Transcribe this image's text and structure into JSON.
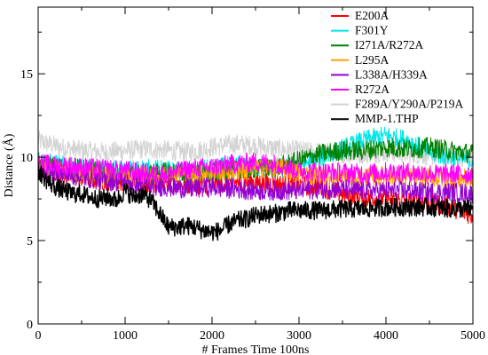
{
  "chart_data": {
    "type": "line",
    "title": "",
    "xlabel": "# Frames Time 100ns",
    "ylabel": "Distance (Å)",
    "xlim": [
      0,
      5000
    ],
    "ylim": [
      0,
      19
    ],
    "xticks": [
      0,
      1000,
      2000,
      3000,
      4000,
      5000
    ],
    "yticks": [
      0,
      5,
      10,
      15
    ],
    "grid": false,
    "legend_position": "top-right",
    "series": [
      {
        "name": "E200A",
        "color": "#ff0000",
        "x": [
          0,
          250,
          500,
          750,
          1000,
          1250,
          1500,
          1750,
          2000,
          2250,
          2500,
          2750,
          3000,
          3250,
          3500,
          3750,
          4000,
          4250,
          4500,
          4750,
          5000
        ],
        "y": [
          9.5,
          9.0,
          8.8,
          8.6,
          8.6,
          8.5,
          8.4,
          8.3,
          8.4,
          8.5,
          8.5,
          8.4,
          8.3,
          8.2,
          7.8,
          7.6,
          7.5,
          7.4,
          7.3,
          7.0,
          6.5
        ]
      },
      {
        "name": "F301Y",
        "color": "#00e5e5",
        "x": [
          0,
          250,
          500,
          750,
          1000,
          1250,
          1500,
          1750,
          2000,
          2250,
          2500,
          2750,
          3000,
          3250,
          3500,
          3750,
          4000,
          4250,
          4500,
          4750,
          5000
        ],
        "y": [
          9.8,
          9.5,
          9.3,
          9.2,
          9.2,
          9.3,
          9.2,
          9.1,
          9.3,
          9.5,
          9.4,
          9.3,
          9.5,
          10.0,
          10.5,
          11.0,
          11.3,
          11.0,
          10.3,
          10.0,
          9.8
        ]
      },
      {
        "name": "I271A/R272A",
        "color": "#008000",
        "x": [
          0,
          250,
          500,
          750,
          1000,
          1250,
          1500,
          1750,
          2000,
          2250,
          2500,
          2750,
          3000,
          3250,
          3500,
          3750,
          4000,
          4250,
          4500,
          4750,
          5000
        ],
        "y": [
          9.6,
          9.4,
          9.3,
          9.1,
          9.0,
          9.0,
          9.1,
          9.0,
          9.1,
          9.2,
          9.3,
          9.4,
          9.8,
          10.2,
          10.4,
          10.4,
          10.6,
          10.5,
          10.6,
          10.4,
          10.2
        ]
      },
      {
        "name": "L295A",
        "color": "#ffa500",
        "x": [
          0,
          250,
          500,
          750,
          1000,
          1250,
          1500,
          1750,
          2000,
          2250,
          2500,
          2750,
          3000,
          3250,
          3500,
          3750,
          4000,
          4250,
          4500,
          4750,
          5000
        ],
        "y": [
          9.4,
          9.2,
          9.0,
          8.9,
          8.8,
          8.8,
          9.0,
          9.0,
          9.1,
          9.2,
          9.3,
          9.4,
          9.0,
          8.9,
          8.8,
          8.8,
          8.9,
          8.8,
          8.8,
          8.7,
          8.7
        ]
      },
      {
        "name": "L338A/H339A",
        "color": "#9400d3",
        "x": [
          0,
          250,
          500,
          750,
          1000,
          1250,
          1500,
          1750,
          2000,
          2250,
          2500,
          2750,
          3000,
          3250,
          3500,
          3750,
          4000,
          4250,
          4500,
          4750,
          5000
        ],
        "y": [
          9.3,
          9.0,
          8.8,
          8.6,
          8.5,
          8.3,
          8.2,
          8.1,
          8.2,
          8.1,
          8.0,
          8.0,
          8.0,
          8.1,
          8.1,
          8.0,
          8.0,
          8.0,
          7.9,
          7.9,
          7.8
        ]
      },
      {
        "name": "R272A",
        "color": "#ff00ff",
        "x": [
          0,
          250,
          500,
          750,
          1000,
          1250,
          1500,
          1750,
          2000,
          2250,
          2500,
          2750,
          3000,
          3250,
          3500,
          3750,
          4000,
          4250,
          4500,
          4750,
          5000
        ],
        "y": [
          9.6,
          9.5,
          9.4,
          9.3,
          9.2,
          9.0,
          9.0,
          9.3,
          9.4,
          9.6,
          9.7,
          9.6,
          9.2,
          9.1,
          9.1,
          9.0,
          9.1,
          9.1,
          9.0,
          9.0,
          9.0
        ]
      },
      {
        "name": "F289A/Y290A/P219A",
        "color": "#d3d3d3",
        "x": [
          0,
          250,
          500,
          750,
          1000,
          1250,
          1500,
          1750,
          2000,
          2250,
          2500,
          2750,
          3000,
          3250,
          3500,
          3750,
          4000,
          4250,
          4500,
          4750,
          5000
        ],
        "y": [
          11.0,
          10.6,
          10.4,
          10.3,
          10.4,
          10.5,
          10.4,
          10.3,
          10.6,
          10.8,
          10.7,
          10.5,
          10.4,
          10.3,
          10.2,
          10.2,
          10.3,
          10.2,
          10.1,
          10.1,
          10.0
        ]
      },
      {
        "name": "MMP-1.THP",
        "color": "#000000",
        "x": [
          0,
          100,
          200,
          300,
          400,
          500,
          600,
          700,
          800,
          900,
          1000,
          1100,
          1200,
          1300,
          1400,
          1500,
          1600,
          1700,
          1800,
          1900,
          2000,
          2100,
          2200,
          2300,
          2400,
          2500,
          2600,
          2700,
          2800,
          2900,
          3000,
          3250,
          3500,
          3750,
          4000,
          4250,
          4500,
          4750,
          5000
        ],
        "y": [
          9.2,
          8.6,
          8.2,
          8.0,
          7.8,
          7.8,
          7.6,
          7.5,
          7.6,
          7.4,
          8.0,
          7.6,
          7.8,
          7.4,
          6.6,
          5.8,
          5.8,
          5.9,
          5.8,
          5.6,
          5.5,
          5.6,
          6.0,
          6.2,
          6.3,
          6.5,
          6.6,
          6.6,
          6.7,
          6.8,
          6.8,
          6.8,
          6.9,
          6.9,
          7.0,
          7.0,
          7.0,
          6.9,
          6.9
        ]
      }
    ]
  }
}
